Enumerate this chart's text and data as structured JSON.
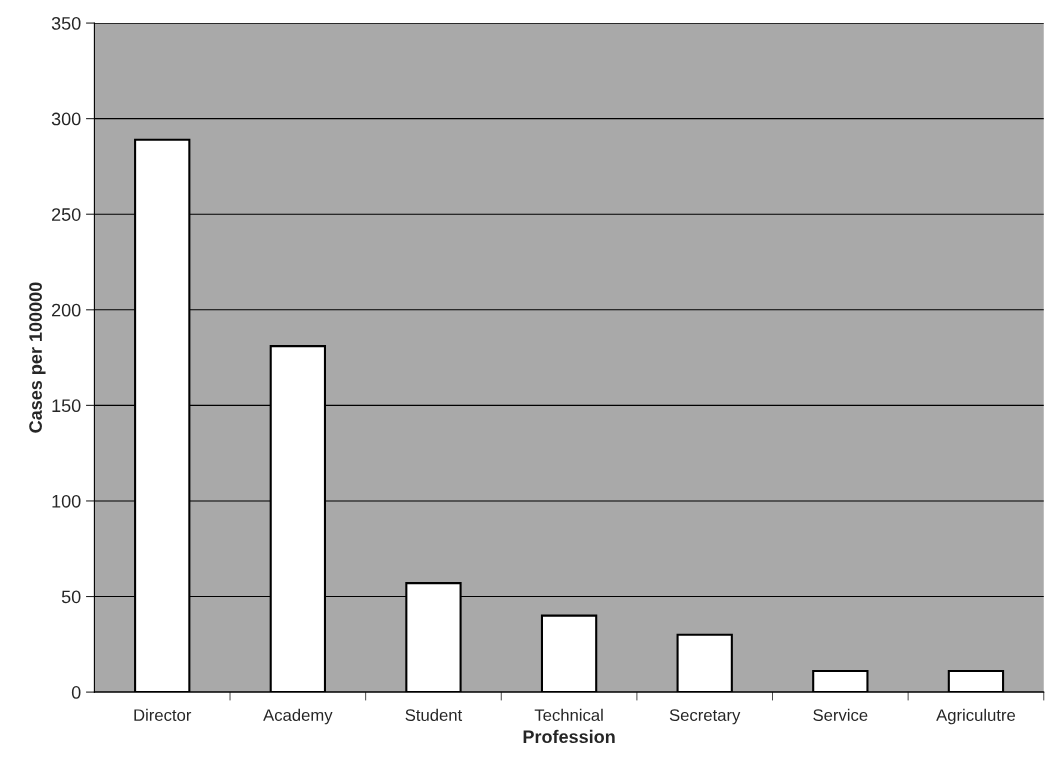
{
  "chart_data": {
    "type": "bar",
    "xlabel": "Profession",
    "ylabel": "Cases per 100000",
    "categories": [
      "Director",
      "Academy",
      "Student",
      "Technical",
      "Secretary",
      "Service",
      "Agriculutre"
    ],
    "values": [
      289,
      181,
      57,
      40,
      30,
      11,
      11
    ],
    "color": "#ffffff",
    "ylim": [
      0,
      350
    ],
    "yticks": [
      0,
      50,
      100,
      150,
      200,
      250,
      300,
      350
    ],
    "grid": "y"
  }
}
